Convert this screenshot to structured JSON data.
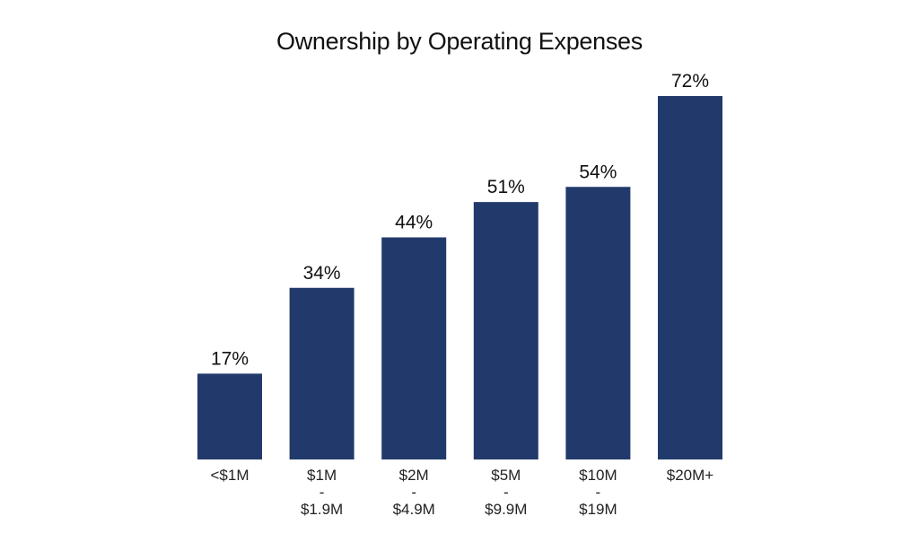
{
  "chart_data": {
    "type": "bar",
    "title": "Ownership by Operating Expenses",
    "categories": [
      "<$1M",
      "$1M\n-\n$1.9M",
      "$2M\n-\n$4.9M",
      "$5M\n-\n$9.9M",
      "$10M\n-\n$19M",
      "$20M+"
    ],
    "values": [
      17,
      34,
      44,
      51,
      54,
      72
    ],
    "data_labels": [
      "17%",
      "34%",
      "44%",
      "51%",
      "54%",
      "72%"
    ],
    "xlabel": "",
    "ylabel": "",
    "ylim": [
      0,
      80
    ],
    "grid": false,
    "bar_color": "#223a6b"
  }
}
